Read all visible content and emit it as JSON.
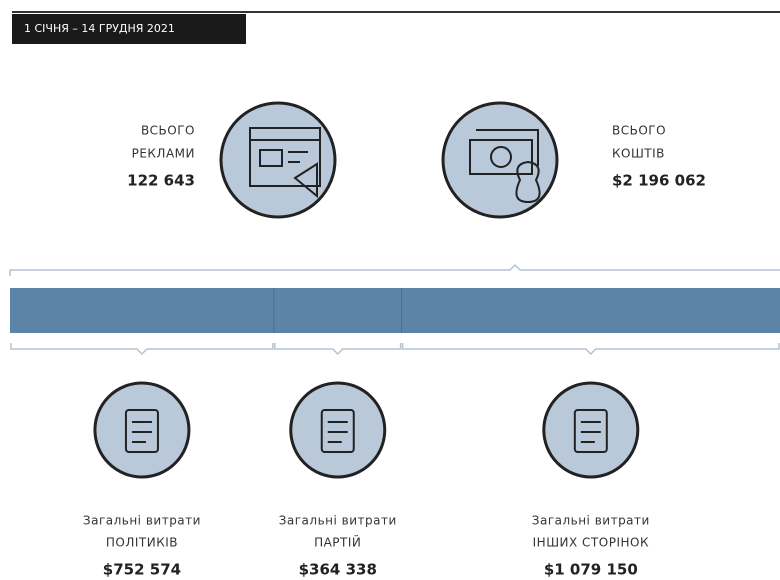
{
  "period": "1 СІЧНЯ – 14 ГРУДНЯ 2021",
  "ads": {
    "line1": "ВСЬОГО",
    "line2": "РЕКЛАМИ",
    "value_label": "122 643"
  },
  "total": {
    "line1": "ВСЬОГО",
    "line2": "КОШТІВ",
    "value": 2196062,
    "value_label": "$2 196 062"
  },
  "segments": [
    {
      "line1": "Загальні витрати",
      "line2": "ПОЛІТИКІВ",
      "value": 752574,
      "value_label": "$752 574"
    },
    {
      "line1": "Загальні витрати",
      "line2": "ПАРТІЙ",
      "value": 364338,
      "value_label": "$364 338"
    },
    {
      "line1": "Загальні витрати",
      "line2": "ІНШИХ СТОРІНОК",
      "value": 1079150,
      "value_label": "$1 079 150"
    }
  ]
}
